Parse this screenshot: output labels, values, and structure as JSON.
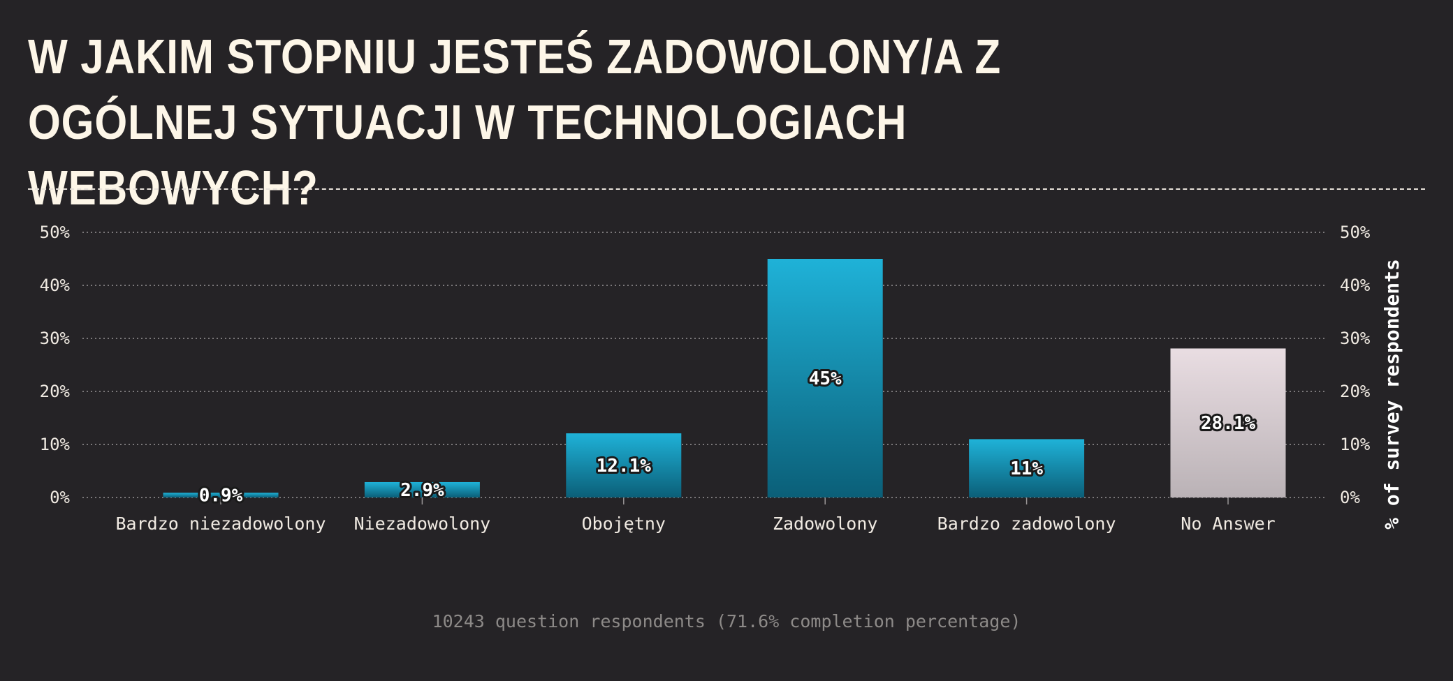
{
  "chart_data": {
    "type": "bar",
    "title": "W jakim stopniu jesteś zadowolony/a z ogólnej sytuacji w technologiach webowych?",
    "categories": [
      "Bardzo niezadowolony",
      "Niezadowolony",
      "Obojętny",
      "Zadowolony",
      "Bardzo zadowolony",
      "No Answer"
    ],
    "values": [
      0.9,
      2.9,
      12.1,
      45,
      11,
      28.1
    ],
    "value_labels": [
      "0.9%",
      "2.9%",
      "12.1%",
      "45%",
      "11%",
      "28.1%"
    ],
    "ylabel": "% of survey respondents",
    "ylim": [
      0,
      50
    ],
    "yticks": [
      0,
      10,
      20,
      30,
      40,
      50
    ],
    "ytick_labels": [
      "0%",
      "10%",
      "20%",
      "30%",
      "40%",
      "50%"
    ],
    "grid": true,
    "colors": {
      "bar_top": "#1fb2d8",
      "bar_bottom": "#0b5f78",
      "no_answer_top": "#e9dde2",
      "no_answer_bottom": "#bab2b6"
    }
  },
  "footer": "10243 question respondents (71.6% completion percentage)"
}
